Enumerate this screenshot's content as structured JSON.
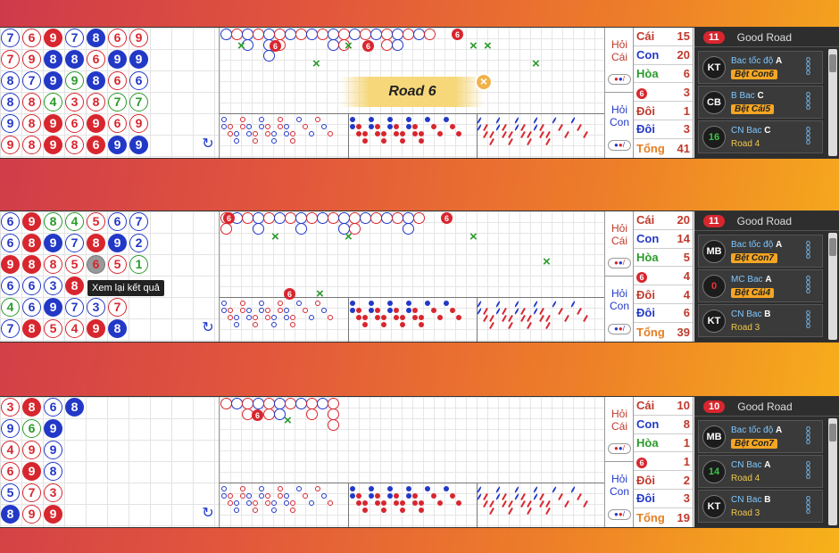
{
  "tables": [
    {
      "hoi": {
        "cai_label": "Hỏi Cái",
        "con_label": "Hỏi Con"
      },
      "stats": [
        {
          "key": "Cái",
          "value": "15"
        },
        {
          "key": "Con",
          "value": "20"
        },
        {
          "key": "Hòa",
          "value": "6"
        },
        {
          "key": "6",
          "value": "3"
        },
        {
          "key": "Đôi",
          "value": "1"
        },
        {
          "key": "Đôi",
          "value": "3"
        },
        {
          "key": "Tổng",
          "value": "41"
        }
      ],
      "good_road": {
        "count": "11",
        "title": "Good Road",
        "rooms": [
          {
            "avatar": "KT",
            "name": "Bac tốc độ",
            "letter": "A",
            "line2": "Bệt Con6",
            "tag": true
          },
          {
            "avatar": "CB",
            "name": "B Bac",
            "letter": "C",
            "line2": "Bệt Cái5",
            "tag": true
          },
          {
            "avatar": "16",
            "name": "CN Bac",
            "letter": "C",
            "line2": "Road 4",
            "tag": false
          }
        ]
      },
      "bead_grid": [
        [
          "7b",
          "7r",
          "8b",
          "8b",
          "9b",
          "9r"
        ],
        [
          "6r",
          "9r",
          "7b",
          "8r",
          "8r",
          "8r"
        ],
        [
          "9R",
          "8B",
          "9B",
          "4g",
          "9R",
          "9R"
        ],
        [
          "7b",
          "8B",
          "9g",
          "3r",
          "6r",
          "8r"
        ],
        [
          "8B",
          "6r",
          "8B",
          "8r",
          "9R",
          "6R"
        ],
        [
          "6r",
          "9B",
          "6r",
          "7g",
          "6r",
          "9B"
        ],
        [
          "9r",
          "9B",
          "6b",
          "7g",
          "9r",
          "9B"
        ]
      ]
    },
    {
      "hoi": {
        "cai_label": "Hỏi Cái",
        "con_label": "Hỏi Con"
      },
      "stats": [
        {
          "key": "Cái",
          "value": "20"
        },
        {
          "key": "Con",
          "value": "14"
        },
        {
          "key": "Hòa",
          "value": "5"
        },
        {
          "key": "6",
          "value": "4"
        },
        {
          "key": "Đôi",
          "value": "4"
        },
        {
          "key": "Đôi",
          "value": "6"
        },
        {
          "key": "Tổng",
          "value": "39"
        }
      ],
      "good_road": {
        "count": "11",
        "title": "Good Road",
        "rooms": [
          {
            "avatar": "MB",
            "name": "Bac tốc độ",
            "letter": "A",
            "line2": "Bệt Con7",
            "tag": true
          },
          {
            "avatar": "0",
            "name": "MC Bac",
            "letter": "A",
            "line2": "Bệt Cái4",
            "tag": true
          },
          {
            "avatar": "KT",
            "name": "CN Bac",
            "letter": "B",
            "line2": "Road 3",
            "tag": false
          }
        ]
      },
      "bead_grid": [
        [
          "6b",
          "6b",
          "9R",
          "6b",
          "4g",
          "7b"
        ],
        [
          "9R",
          "8R",
          "8R",
          "6b",
          "6b",
          "8R"
        ],
        [
          "8g",
          "9B",
          "8r",
          "3b",
          "9B",
          "5r"
        ],
        [
          "4g",
          "7b",
          "5r",
          "8R",
          "7b",
          "4r"
        ],
        [
          "5r",
          "8R",
          "6x",
          "x",
          "3b",
          "9R"
        ],
        [
          "6b",
          "9B",
          "5r",
          "",
          "7r",
          "8B"
        ],
        [
          "7b",
          "2b",
          "1g",
          "",
          "",
          ""
        ]
      ],
      "tooltip": "Xem lại kết quả"
    },
    {
      "hoi": {
        "cai_label": "Hỏi Cái",
        "con_label": "Hỏi Con"
      },
      "stats": [
        {
          "key": "Cái",
          "value": "10"
        },
        {
          "key": "Con",
          "value": "8"
        },
        {
          "key": "Hòa",
          "value": "1"
        },
        {
          "key": "6",
          "value": "1"
        },
        {
          "key": "Đôi",
          "value": "2"
        },
        {
          "key": "Đôi",
          "value": "3"
        },
        {
          "key": "Tổng",
          "value": "19"
        }
      ],
      "good_road": {
        "count": "10",
        "title": "Good Road",
        "rooms": [
          {
            "avatar": "MB",
            "name": "Bac tốc độ",
            "letter": "A",
            "line2": "Bệt Con7",
            "tag": true
          },
          {
            "avatar": "14",
            "name": "CN Bac",
            "letter": "A",
            "line2": "Road 4",
            "tag": false
          },
          {
            "avatar": "KT",
            "name": "CN Bac",
            "letter": "B",
            "line2": "Road 3",
            "tag": false
          }
        ]
      },
      "bead_grid": [
        [
          "3r",
          "9b",
          "4r",
          "6r",
          "5b",
          "8B"
        ],
        [
          "8R",
          "6g",
          "9r",
          "9R",
          "7r",
          "9r"
        ],
        [
          "6b",
          "9B",
          "9b",
          "8b",
          "3r",
          "9R"
        ],
        [
          "8B",
          "",
          "",
          "",
          "",
          ""
        ]
      ]
    }
  ],
  "banner": {
    "text": "Road 6",
    "close": "×"
  },
  "colors": {
    "banker": "#d8262e",
    "player": "#2238c7",
    "tie": "#2a9a2a",
    "accent": "#f5a623"
  }
}
